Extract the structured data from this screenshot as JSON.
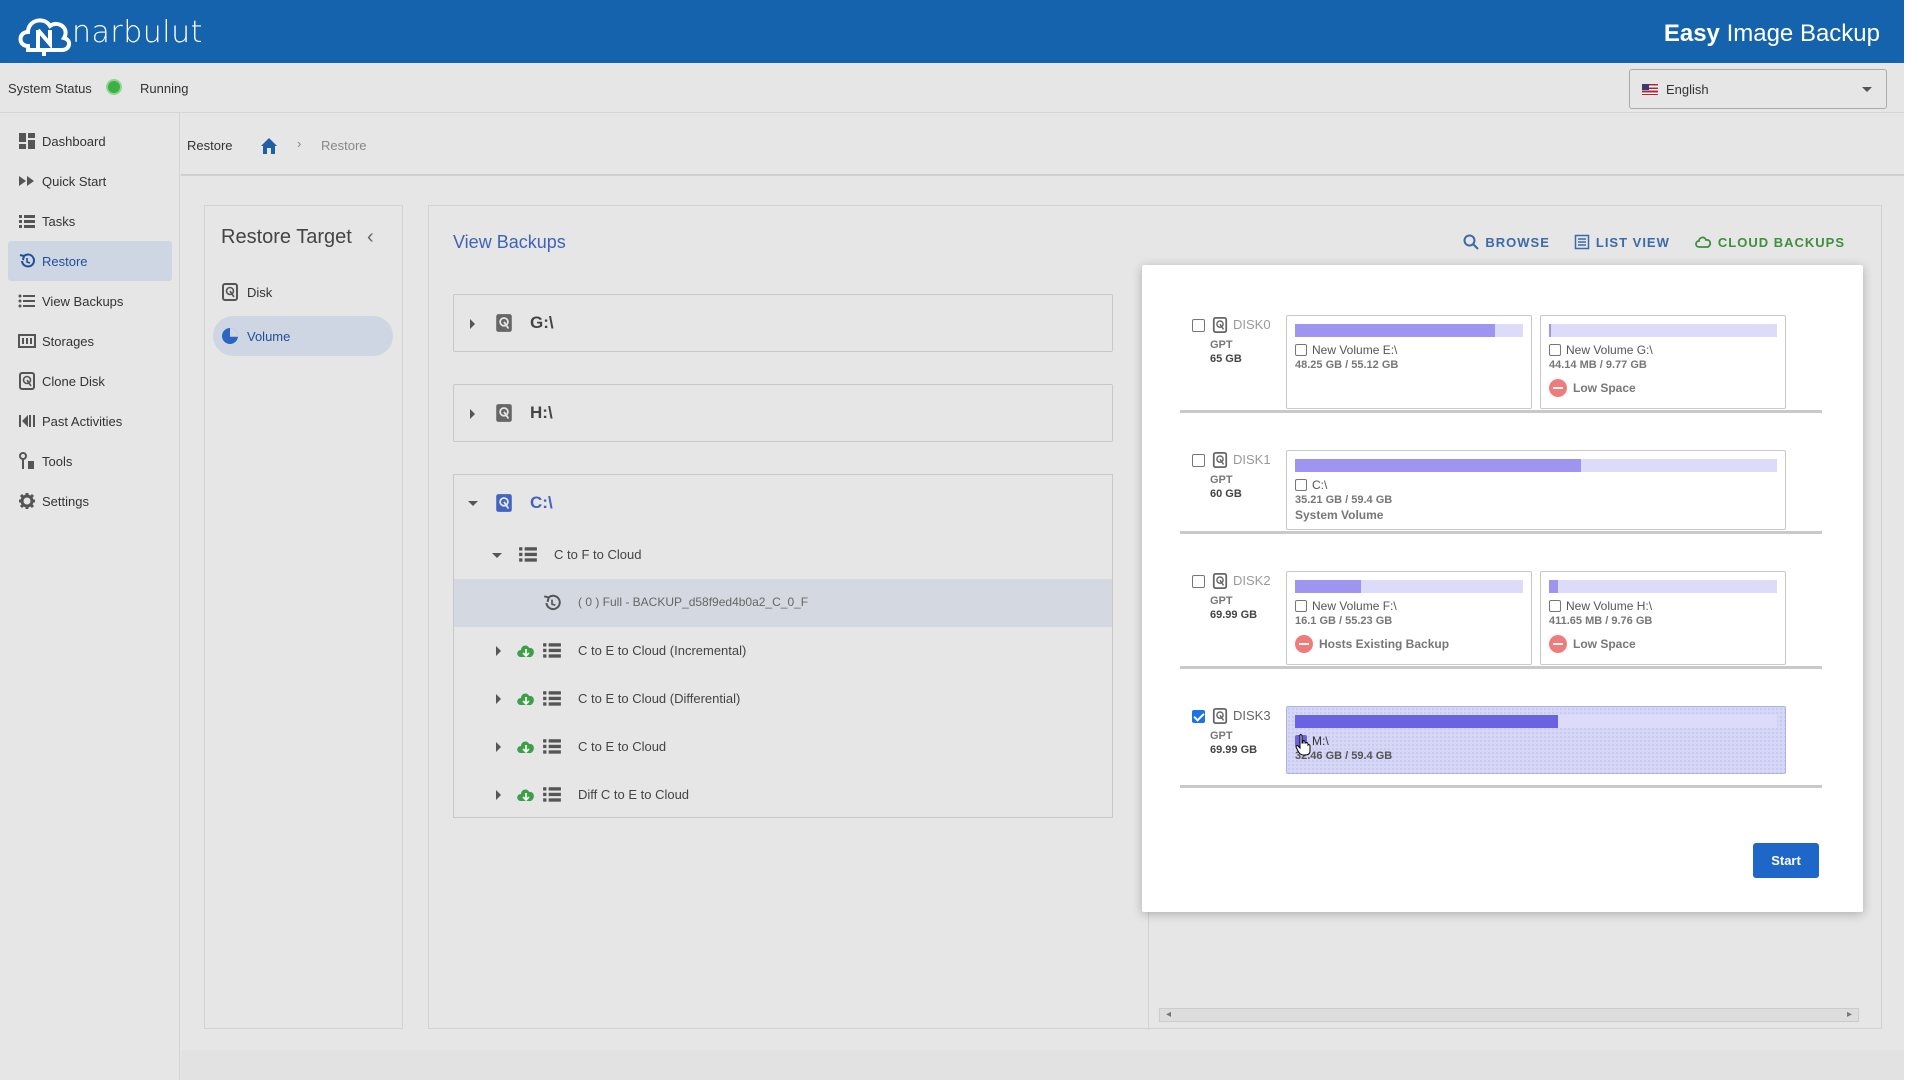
{
  "header": {
    "brand": "narbulut",
    "title_bold": "Easy",
    "title_rest": " Image Backup"
  },
  "status": {
    "label": "System Status",
    "value": "Running",
    "color": "#3cb043"
  },
  "language": {
    "selected": "English"
  },
  "sidebar": {
    "items": [
      {
        "label": "Dashboard",
        "icon": "dashboard-icon"
      },
      {
        "label": "Quick Start",
        "icon": "fast-forward-icon"
      },
      {
        "label": "Tasks",
        "icon": "list-icon"
      },
      {
        "label": "Restore",
        "icon": "restore-icon",
        "active": true
      },
      {
        "label": "View Backups",
        "icon": "list-bullets-icon"
      },
      {
        "label": "Storages",
        "icon": "storage-icon"
      },
      {
        "label": "Clone Disk",
        "icon": "disk-icon"
      },
      {
        "label": "Past Activities",
        "icon": "rewind-icon"
      },
      {
        "label": "Tools",
        "icon": "tools-icon"
      },
      {
        "label": "Settings",
        "icon": "gear-icon"
      }
    ]
  },
  "breadcrumb": {
    "title": "Restore",
    "current": "Restore"
  },
  "restore_target": {
    "title": "Restore Target",
    "items": [
      {
        "label": "Disk"
      },
      {
        "label": "Volume",
        "active": true
      }
    ]
  },
  "view_backups": {
    "title": "View Backups",
    "actions": {
      "browse": "BROWSE",
      "list_view": "LIST VIEW",
      "cloud_backups": "CLOUD BACKUPS"
    },
    "volumes": [
      {
        "label": "G:\\"
      },
      {
        "label": "H:\\"
      },
      {
        "label": "C:\\"
      }
    ],
    "tree": {
      "task": "C to F to Cloud",
      "backup": "( 0 ) Full - BACKUP_d58f9ed4b0a2_C_0_F",
      "others": [
        "C to E to Cloud (Incremental)",
        "C to E to Cloud (Differential)",
        "C to E to Cloud",
        "Diff C to E to Cloud"
      ]
    }
  },
  "modal": {
    "disks": [
      {
        "name": "DISK0",
        "type": "GPT",
        "size": "65 GB",
        "checked": false,
        "partitions": [
          {
            "name": "New Volume E:\\",
            "usage": "48.25 GB / 55.12 GB",
            "fill": 0.875,
            "note": "",
            "warning": ""
          },
          {
            "name": "New Volume G:\\",
            "usage": "44.14 MB / 9.77 GB",
            "fill": 0.005,
            "note": "",
            "warning": "Low Space"
          }
        ]
      },
      {
        "name": "DISK1",
        "type": "GPT",
        "size": "60 GB",
        "checked": false,
        "partitions": [
          {
            "name": "C:\\",
            "usage": "35.21 GB / 59.4 GB",
            "fill": 0.593,
            "note": "System Volume",
            "warning": ""
          }
        ]
      },
      {
        "name": "DISK2",
        "type": "GPT",
        "size": "69.99 GB",
        "checked": false,
        "partitions": [
          {
            "name": "New Volume F:\\",
            "usage": "16.1 GB / 55.23 GB",
            "fill": 0.29,
            "note": "",
            "warning": "Hosts Existing Backup"
          },
          {
            "name": "New Volume H:\\",
            "usage": "411.65 MB / 9.76 GB",
            "fill": 0.04,
            "note": "",
            "warning": "Low Space"
          }
        ]
      },
      {
        "name": "DISK3",
        "type": "GPT",
        "size": "69.99 GB",
        "checked": true,
        "partitions": [
          {
            "name": "M:\\",
            "usage": "32.46 GB / 59.4 GB",
            "fill": 0.546,
            "note": "",
            "warning": "",
            "selected": true
          }
        ]
      }
    ],
    "start_label": "Start"
  }
}
